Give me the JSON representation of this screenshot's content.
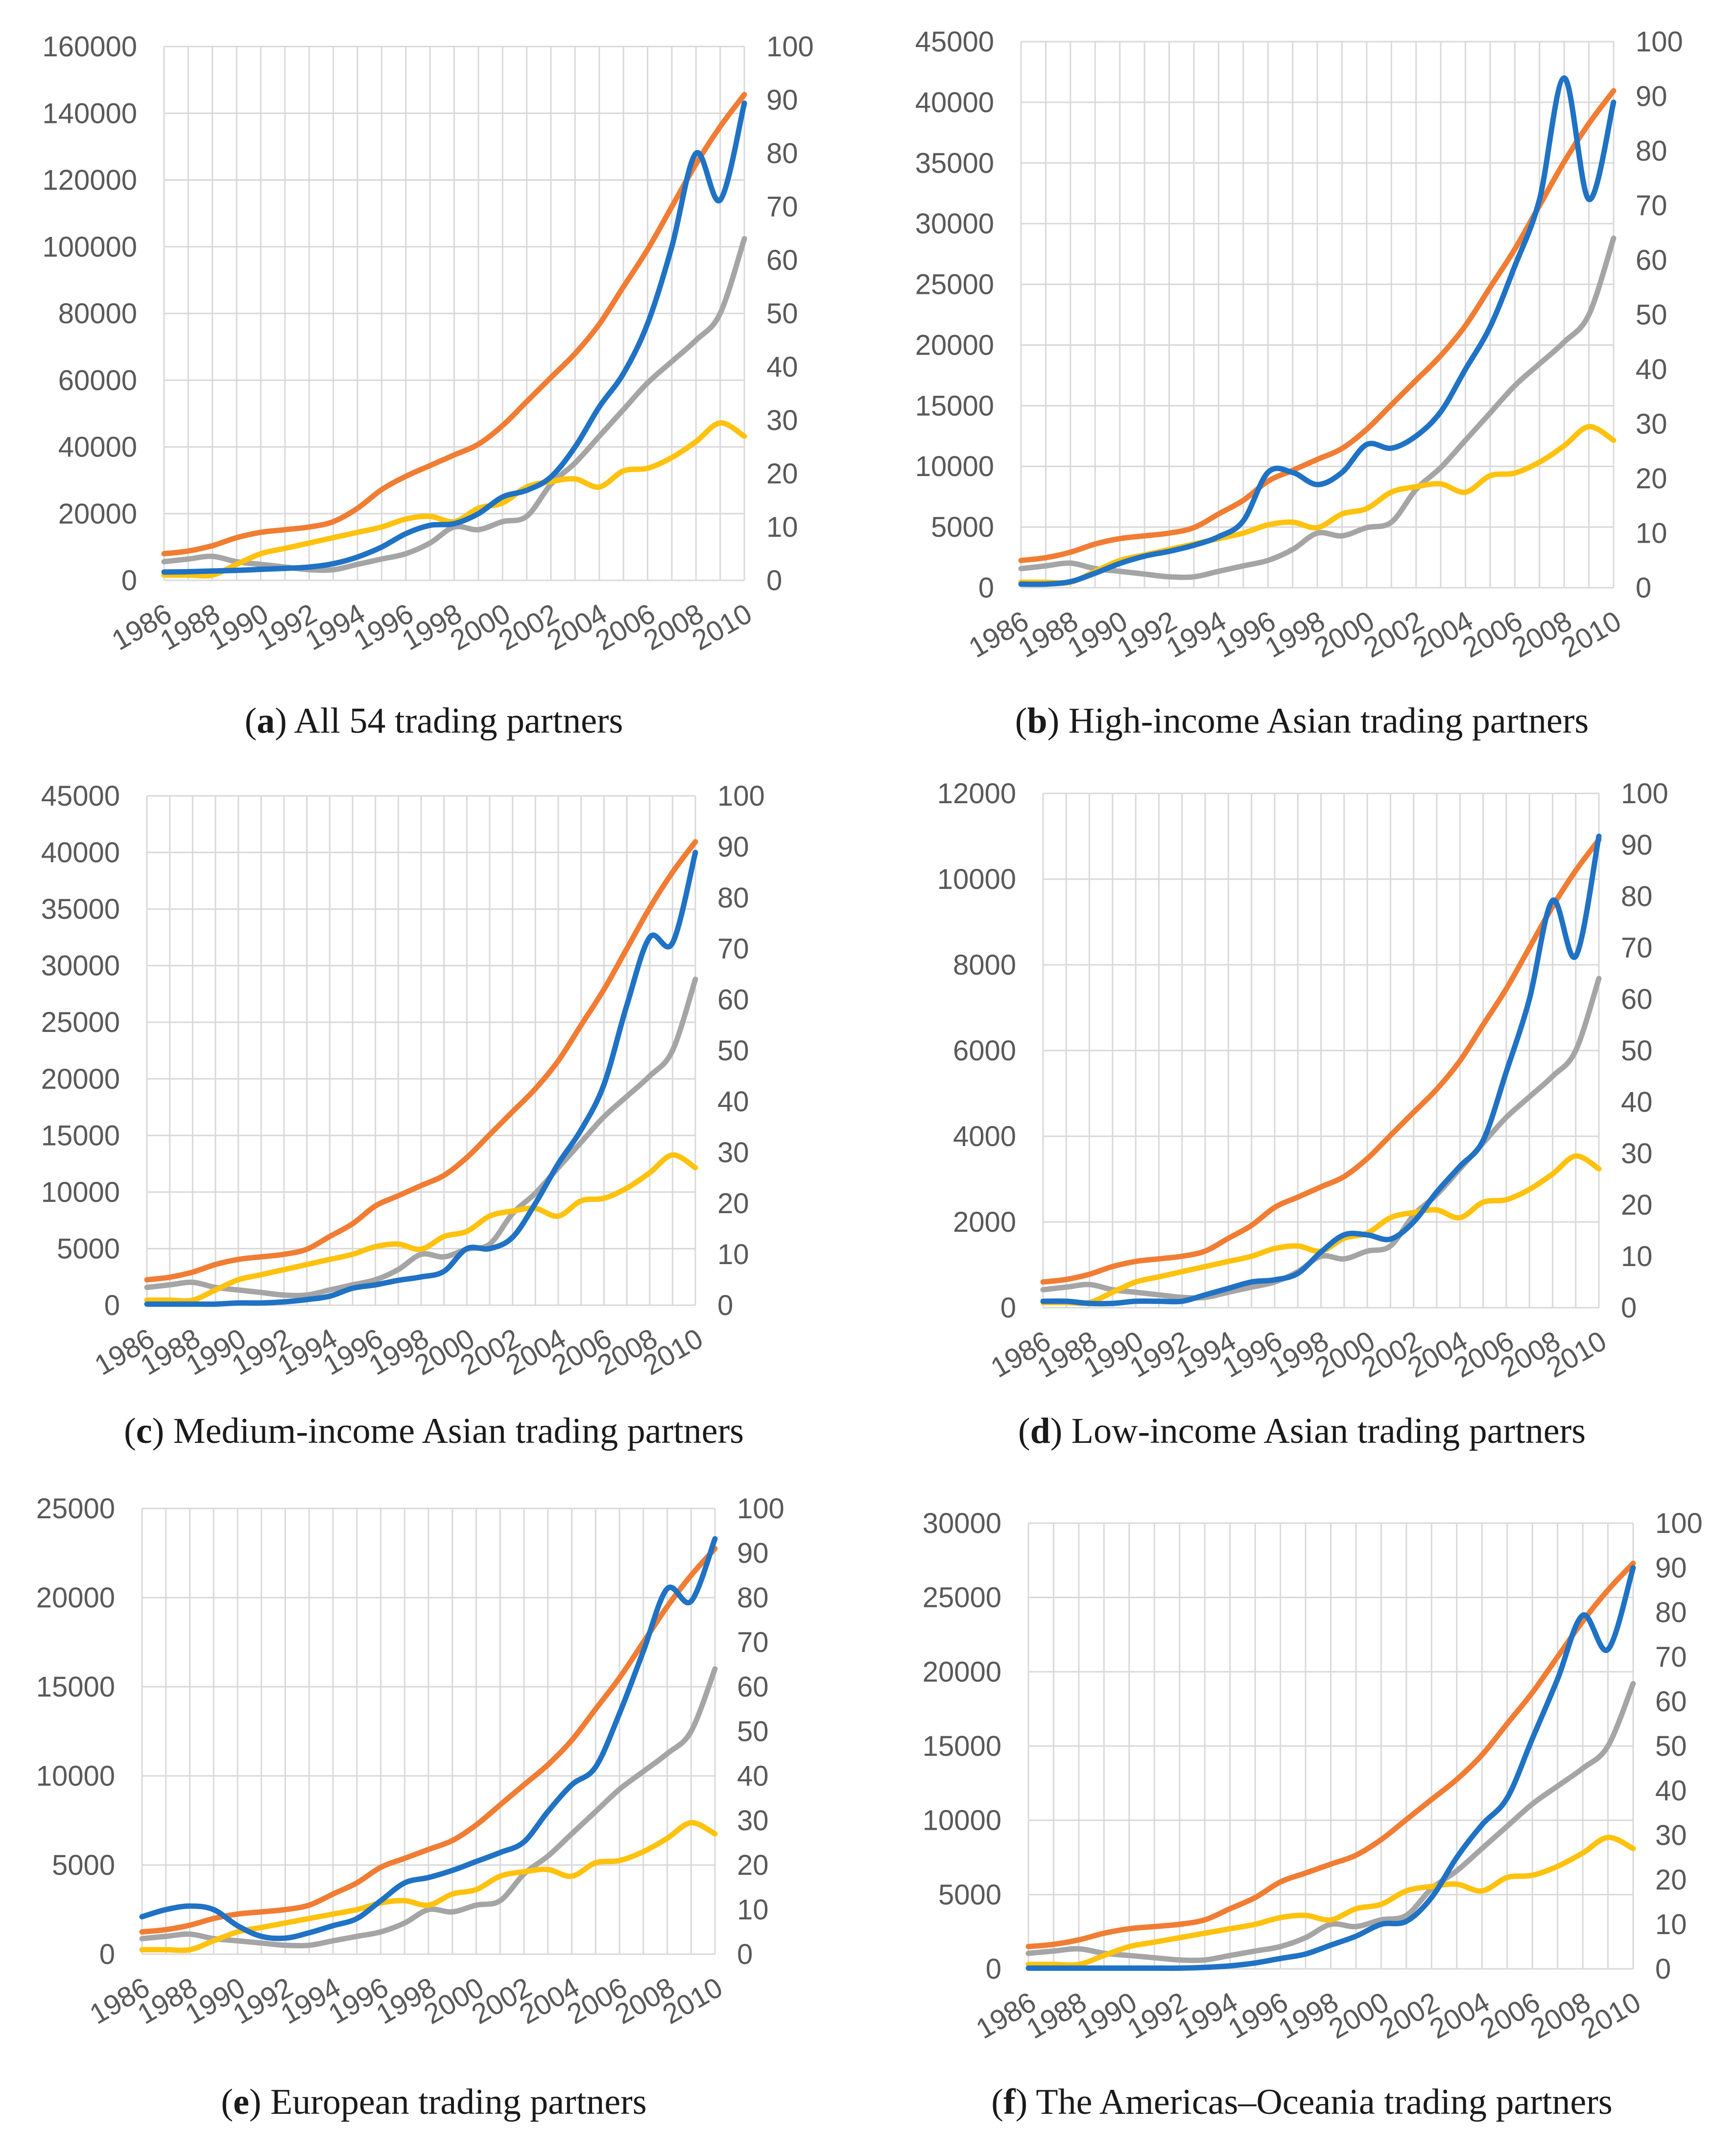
{
  "colors": {
    "blue": "#1f72c4",
    "orange": "#f07d33",
    "gray": "#a5a5a5",
    "yellow": "#ffc20e",
    "grid": "#d9d9d9",
    "tick": "#595959"
  },
  "years": [
    1986,
    1987,
    1988,
    1989,
    1990,
    1991,
    1992,
    1993,
    1994,
    1995,
    1996,
    1997,
    1998,
    1999,
    2000,
    2001,
    2002,
    2003,
    2004,
    2005,
    2006,
    2007,
    2008,
    2009,
    2010
  ],
  "x_tick_labels": [
    "1986",
    "1988",
    "1990",
    "1992",
    "1994",
    "1996",
    "1998",
    "2000",
    "2002",
    "2004",
    "2006",
    "2008",
    "2010"
  ],
  "right_axis": {
    "ticks": [
      "0",
      "10",
      "20",
      "30",
      "40",
      "50",
      "60",
      "70",
      "80",
      "90",
      "100"
    ],
    "ylim": [
      0,
      100
    ]
  },
  "captions": [
    {
      "letter": "a",
      "text": ") All 54 trading partners"
    },
    {
      "letter": "b",
      "text": ") High-income Asian trading partners"
    },
    {
      "letter": "c",
      "text": ") Medium-income Asian trading partners"
    },
    {
      "letter": "d",
      "text": ") Low-income Asian trading partners"
    },
    {
      "letter": "e",
      "text": ") European trading partners"
    },
    {
      "letter": "f",
      "text": ") The Americas–Oceania trading partners"
    }
  ],
  "chart_data": [
    {
      "type": "line",
      "title": "All 54 trading partners",
      "left_ylim": [
        0,
        160000
      ],
      "left_ticks": [
        "0",
        "20000",
        "40000",
        "60000",
        "80000",
        "100000",
        "120000",
        "140000",
        "160000"
      ],
      "series": [
        {
          "name": "blue",
          "axis": "left",
          "values": [
            2500,
            2600,
            2800,
            3000,
            3300,
            3600,
            4000,
            5000,
            7000,
            10000,
            14000,
            16500,
            17000,
            20000,
            25000,
            27000,
            31000,
            40000,
            52000,
            62000,
            77000,
            100000,
            128000,
            114000,
            143000
          ]
        },
        {
          "name": "orange",
          "axis": "right",
          "values": [
            5,
            5.5,
            6.5,
            8,
            9,
            9.5,
            10,
            11,
            13.5,
            17,
            19.5,
            21.5,
            23.5,
            25.5,
            29,
            33.5,
            38,
            42.5,
            48,
            55,
            62,
            70,
            78,
            85,
            91
          ]
        },
        {
          "name": "gray",
          "axis": "right",
          "values": [
            3.5,
            4,
            4.5,
            3.5,
            3,
            2.5,
            2,
            2,
            3,
            4,
            5,
            7,
            10,
            9.5,
            11,
            12,
            18,
            22,
            27,
            32,
            37,
            41,
            45,
            50,
            64
          ]
        },
        {
          "name": "yellow",
          "axis": "right",
          "values": [
            1,
            1,
            1,
            3,
            5,
            6,
            7,
            8,
            9,
            10,
            11.5,
            12,
            11,
            13.5,
            14.5,
            17.5,
            18.5,
            19,
            17.5,
            20.5,
            21,
            23,
            26,
            29.5,
            27
          ]
        }
      ]
    },
    {
      "type": "line",
      "title": "High-income Asian trading partners",
      "left_ylim": [
        0,
        45000
      ],
      "left_ticks": [
        "0",
        "5000",
        "10000",
        "15000",
        "20000",
        "25000",
        "30000",
        "35000",
        "40000",
        "45000"
      ],
      "series": [
        {
          "name": "blue",
          "axis": "left",
          "values": [
            300,
            300,
            500,
            1200,
            2000,
            2600,
            3000,
            3500,
            4200,
            5500,
            9500,
            9500,
            8500,
            9500,
            11800,
            11500,
            12500,
            14500,
            18000,
            21500,
            26500,
            32000,
            42000,
            32000,
            40000
          ]
        },
        {
          "name": "orange",
          "axis": "right",
          "values": [
            5,
            5.5,
            6.5,
            8,
            9,
            9.5,
            10,
            11,
            13.5,
            16,
            19.5,
            21.5,
            23.5,
            25.5,
            29,
            33.5,
            38,
            42.5,
            48,
            55,
            62,
            70,
            78,
            85,
            91
          ]
        },
        {
          "name": "gray",
          "axis": "right",
          "values": [
            3.5,
            4,
            4.5,
            3.5,
            3,
            2.5,
            2,
            2,
            3,
            4,
            5,
            7,
            10,
            9.5,
            11,
            12,
            18,
            22,
            27,
            32,
            37,
            41,
            45,
            50,
            64
          ]
        },
        {
          "name": "yellow",
          "axis": "right",
          "values": [
            1,
            1,
            1,
            3,
            5,
            6,
            7,
            8,
            9,
            10,
            11.5,
            12,
            11,
            13.5,
            14.5,
            17.5,
            18.5,
            19,
            17.5,
            20.5,
            21,
            23,
            26,
            29.5,
            27
          ]
        }
      ]
    },
    {
      "type": "line",
      "title": "Medium-income Asian trading partners",
      "left_ylim": [
        0,
        45000
      ],
      "left_ticks": [
        "0",
        "5000",
        "10000",
        "15000",
        "20000",
        "25000",
        "30000",
        "35000",
        "40000",
        "45000"
      ],
      "series": [
        {
          "name": "blue",
          "axis": "left",
          "values": [
            100,
            100,
            100,
            100,
            200,
            200,
            300,
            500,
            800,
            1500,
            1800,
            2200,
            2500,
            3000,
            5000,
            5000,
            6000,
            9000,
            12500,
            15500,
            19500,
            26500,
            32500,
            32000,
            40000
          ]
        },
        {
          "name": "orange",
          "axis": "right",
          "values": [
            5,
            5.5,
            6.5,
            8,
            9,
            9.5,
            10,
            11,
            13.5,
            16,
            19.5,
            21.5,
            23.5,
            25.5,
            29,
            33.5,
            38,
            42.5,
            48,
            55,
            62,
            70,
            78,
            85,
            91
          ]
        },
        {
          "name": "gray",
          "axis": "right",
          "values": [
            3.5,
            4,
            4.5,
            3.5,
            3,
            2.5,
            2,
            2,
            3,
            4,
            5,
            7,
            10,
            9.5,
            11,
            12,
            18,
            22,
            27,
            32,
            37,
            41,
            45,
            50,
            64
          ]
        },
        {
          "name": "yellow",
          "axis": "right",
          "values": [
            1,
            1,
            1,
            3,
            5,
            6,
            7,
            8,
            9,
            10,
            11.5,
            12,
            11,
            13.5,
            14.5,
            17.5,
            18.5,
            19,
            17.5,
            20.5,
            21,
            23,
            26,
            29.5,
            27
          ]
        }
      ]
    },
    {
      "type": "line",
      "title": "Low-income Asian trading partners",
      "left_ylim": [
        0,
        12000
      ],
      "left_ticks": [
        "0",
        "2000",
        "4000",
        "6000",
        "8000",
        "10000",
        "12000"
      ],
      "series": [
        {
          "name": "blue",
          "axis": "left",
          "values": [
            150,
            150,
            100,
            100,
            150,
            150,
            150,
            300,
            450,
            600,
            650,
            800,
            1300,
            1700,
            1700,
            1600,
            2000,
            2700,
            3300,
            3900,
            5500,
            7200,
            9500,
            8200,
            11000
          ]
        },
        {
          "name": "orange",
          "axis": "right",
          "values": [
            5,
            5.5,
            6.5,
            8,
            9,
            9.5,
            10,
            11,
            13.5,
            16,
            19.5,
            21.5,
            23.5,
            25.5,
            29,
            33.5,
            38,
            42.5,
            48,
            55,
            62,
            70,
            78,
            85,
            91
          ]
        },
        {
          "name": "gray",
          "axis": "right",
          "values": [
            3.5,
            4,
            4.5,
            3.5,
            3,
            2.5,
            2,
            2,
            3,
            4,
            5,
            7,
            10,
            9.5,
            11,
            12,
            18,
            22,
            27,
            32,
            37,
            41,
            45,
            50,
            64
          ]
        },
        {
          "name": "yellow",
          "axis": "right",
          "values": [
            1,
            1,
            1,
            3,
            5,
            6,
            7,
            8,
            9,
            10,
            11.5,
            12,
            11,
            13.5,
            14.5,
            17.5,
            18.5,
            19,
            17.5,
            20.5,
            21,
            23,
            26,
            29.5,
            27
          ]
        }
      ]
    },
    {
      "type": "line",
      "title": "European trading partners",
      "left_ylim": [
        0,
        25000
      ],
      "left_ticks": [
        "0",
        "5000",
        "10000",
        "15000",
        "20000",
        "25000"
      ],
      "series": [
        {
          "name": "blue",
          "axis": "left",
          "values": [
            2100,
            2500,
            2700,
            2500,
            1600,
            1000,
            900,
            1200,
            1600,
            2000,
            3000,
            4000,
            4300,
            4700,
            5200,
            5700,
            6300,
            8000,
            9500,
            10500,
            13500,
            17000,
            20500,
            19800,
            23300
          ]
        },
        {
          "name": "orange",
          "axis": "right",
          "values": [
            5,
            5.5,
            6.5,
            8,
            9,
            9.5,
            10,
            11,
            13.5,
            16,
            19.5,
            21.5,
            23.5,
            25.5,
            29,
            33.5,
            38,
            42.5,
            48,
            55,
            62,
            70,
            78,
            85,
            91
          ]
        },
        {
          "name": "gray",
          "axis": "right",
          "values": [
            3.5,
            4,
            4.5,
            3.5,
            3,
            2.5,
            2,
            2,
            3,
            4,
            5,
            7,
            10,
            9.5,
            11,
            12,
            18,
            22,
            27,
            32,
            37,
            41,
            45,
            50,
            64
          ]
        },
        {
          "name": "yellow",
          "axis": "right",
          "values": [
            1,
            1,
            1,
            3,
            5,
            6,
            7,
            8,
            9,
            10,
            11.5,
            12,
            11,
            13.5,
            14.5,
            17.5,
            18.5,
            19,
            17.5,
            20.5,
            21,
            23,
            26,
            29.5,
            27
          ]
        }
      ]
    },
    {
      "type": "line",
      "title": "The Americas–Oceania trading partners",
      "left_ylim": [
        0,
        30000
      ],
      "left_ticks": [
        "0",
        "5000",
        "10000",
        "15000",
        "20000",
        "25000",
        "30000"
      ],
      "series": [
        {
          "name": "blue",
          "axis": "left",
          "values": [
            50,
            50,
            50,
            50,
            50,
            50,
            50,
            100,
            200,
            400,
            700,
            1000,
            1600,
            2200,
            3000,
            3200,
            4800,
            7500,
            9700,
            11500,
            15500,
            19500,
            23800,
            21500,
            27000
          ]
        },
        {
          "name": "orange",
          "axis": "right",
          "values": [
            5,
            5.5,
            6.5,
            8,
            9,
            9.5,
            10,
            11,
            13.5,
            16,
            19.5,
            21.5,
            23.5,
            25.5,
            29,
            33.5,
            38,
            42.5,
            48,
            55,
            62,
            70,
            78,
            85,
            91
          ]
        },
        {
          "name": "gray",
          "axis": "right",
          "values": [
            3.5,
            4,
            4.5,
            3.5,
            3,
            2.5,
            2,
            2,
            3,
            4,
            5,
            7,
            10,
            9.5,
            11,
            12,
            18,
            22,
            27,
            32,
            37,
            41,
            45,
            50,
            64
          ]
        },
        {
          "name": "yellow",
          "axis": "right",
          "values": [
            1,
            1,
            1,
            3,
            5,
            6,
            7,
            8,
            9,
            10,
            11.5,
            12,
            11,
            13.5,
            14.5,
            17.5,
            18.5,
            19,
            17.5,
            20.5,
            21,
            23,
            26,
            29.5,
            27
          ]
        }
      ]
    }
  ]
}
